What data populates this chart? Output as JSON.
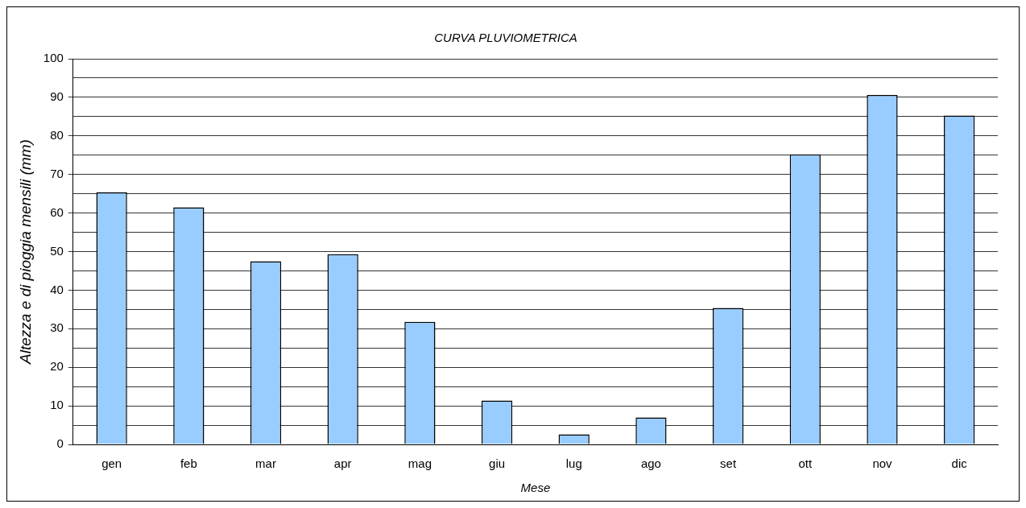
{
  "chart_data": {
    "type": "bar",
    "title": "CURVA PLUVIOMETRICA",
    "xlabel": "Mese",
    "ylabel": "Altezza e di pioggia mensili (mm)",
    "categories": [
      "gen",
      "feb",
      "mar",
      "apr",
      "mag",
      "giu",
      "lug",
      "ago",
      "set",
      "ott",
      "nov",
      "dic"
    ],
    "values": [
      65.4,
      61.5,
      47.5,
      49.3,
      31.8,
      11.4,
      2.6,
      7.0,
      35.4,
      75.2,
      90.6,
      85.3
    ],
    "color": "#99ccff",
    "ylim": [
      0,
      100
    ],
    "yticks": [
      0,
      {
        "value": 5,
        "label": null
      },
      10,
      {
        "value": 15,
        "label": null
      },
      20,
      {
        "value": 25,
        "label": null
      },
      30,
      {
        "value": 35,
        "label": null
      },
      40,
      {
        "value": 45,
        "label": null
      },
      50,
      {
        "value": 55,
        "label": null
      },
      60,
      {
        "value": 65,
        "label": null
      },
      70,
      {
        "value": 75,
        "label": null
      },
      80,
      {
        "value": 85,
        "label": null
      },
      90,
      {
        "value": 95,
        "label": null
      },
      100
    ],
    "grid": "y"
  }
}
